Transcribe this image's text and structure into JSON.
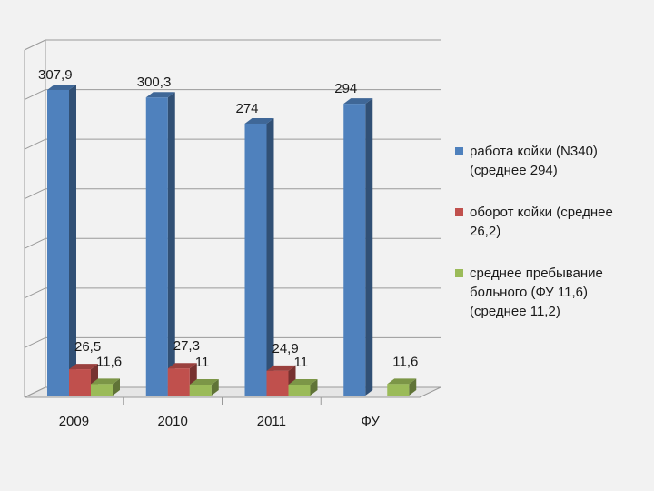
{
  "chart_data": {
    "type": "bar",
    "subtype": "3d-clustered",
    "categories": [
      "2009",
      "2010",
      "2011",
      "ФУ"
    ],
    "ylim": [
      0,
      350
    ],
    "grid": true,
    "legend_position": "right",
    "series": [
      {
        "name": "работа койки (N340) (среднее 294)",
        "legend_lines": [
          "работа койки (N340)",
          "(среднее 294)"
        ],
        "color": "#4f81bd",
        "values": [
          307.9,
          300.3,
          274,
          294
        ],
        "labels": [
          "307,9",
          "300,3",
          "274",
          "294"
        ]
      },
      {
        "name": "оборот койки (среднее 26,2)",
        "legend_lines": [
          "оборот койки (среднее",
          "26,2)"
        ],
        "color": "#c0504d",
        "values": [
          26.5,
          27.3,
          24.9,
          null
        ],
        "labels": [
          "26,5",
          "27,3",
          "24,9",
          ""
        ]
      },
      {
        "name": "среднее пребывание больного (ФУ 11,6) (среднее 11,2)",
        "legend_lines": [
          "среднее пребывание",
          "больного (ФУ 11,6)",
          "(среднее  11,2)"
        ],
        "color": "#9bbb59",
        "values": [
          11.6,
          11,
          11,
          11.6
        ],
        "labels": [
          "11,6",
          "11",
          "11",
          "11,6"
        ]
      }
    ]
  }
}
